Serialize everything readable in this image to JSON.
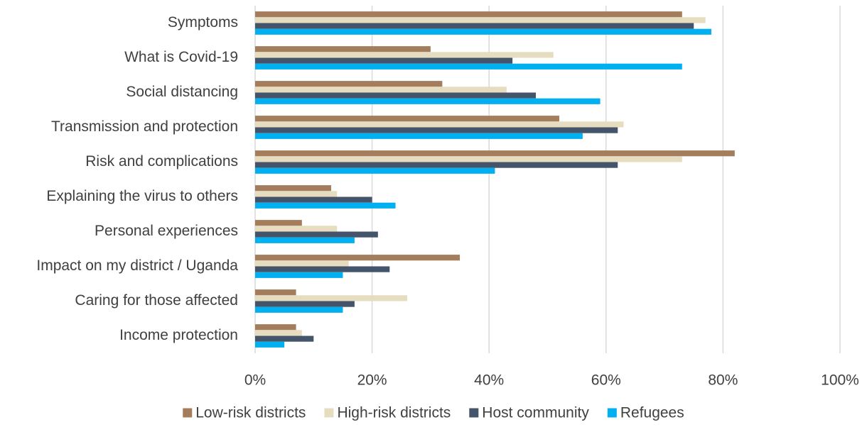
{
  "chart_data": {
    "type": "bar",
    "orientation": "horizontal",
    "categories": [
      "Symptoms",
      "What is Covid-19",
      "Social distancing",
      "Transmission and protection",
      "Risk and complications",
      "Explaining the virus to others",
      "Personal experiences",
      "Impact on my district / Uganda",
      "Caring for those affected",
      "Income protection"
    ],
    "series": [
      {
        "name": "Low-risk districts",
        "color": "#a47d5d",
        "values": [
          73,
          30,
          32,
          52,
          82,
          13,
          8,
          35,
          7,
          7
        ]
      },
      {
        "name": "High-risk districts",
        "color": "#e6dcc0",
        "values": [
          77,
          51,
          43,
          63,
          73,
          14,
          14,
          16,
          26,
          8
        ]
      },
      {
        "name": "Host community",
        "color": "#44546a",
        "values": [
          75,
          44,
          48,
          62,
          62,
          20,
          21,
          23,
          17,
          10
        ]
      },
      {
        "name": "Refugees",
        "color": "#00b0f0",
        "values": [
          78,
          73,
          59,
          56,
          41,
          24,
          17,
          15,
          15,
          5
        ]
      }
    ],
    "xlim": [
      0,
      100
    ],
    "x_ticks": [
      0,
      20,
      40,
      60,
      80,
      100
    ],
    "x_tick_labels": [
      "0%",
      "20%",
      "40%",
      "60%",
      "80%",
      "100%"
    ],
    "grid": "vertical",
    "legend_position": "bottom",
    "title": "",
    "xlabel": "",
    "ylabel": ""
  }
}
